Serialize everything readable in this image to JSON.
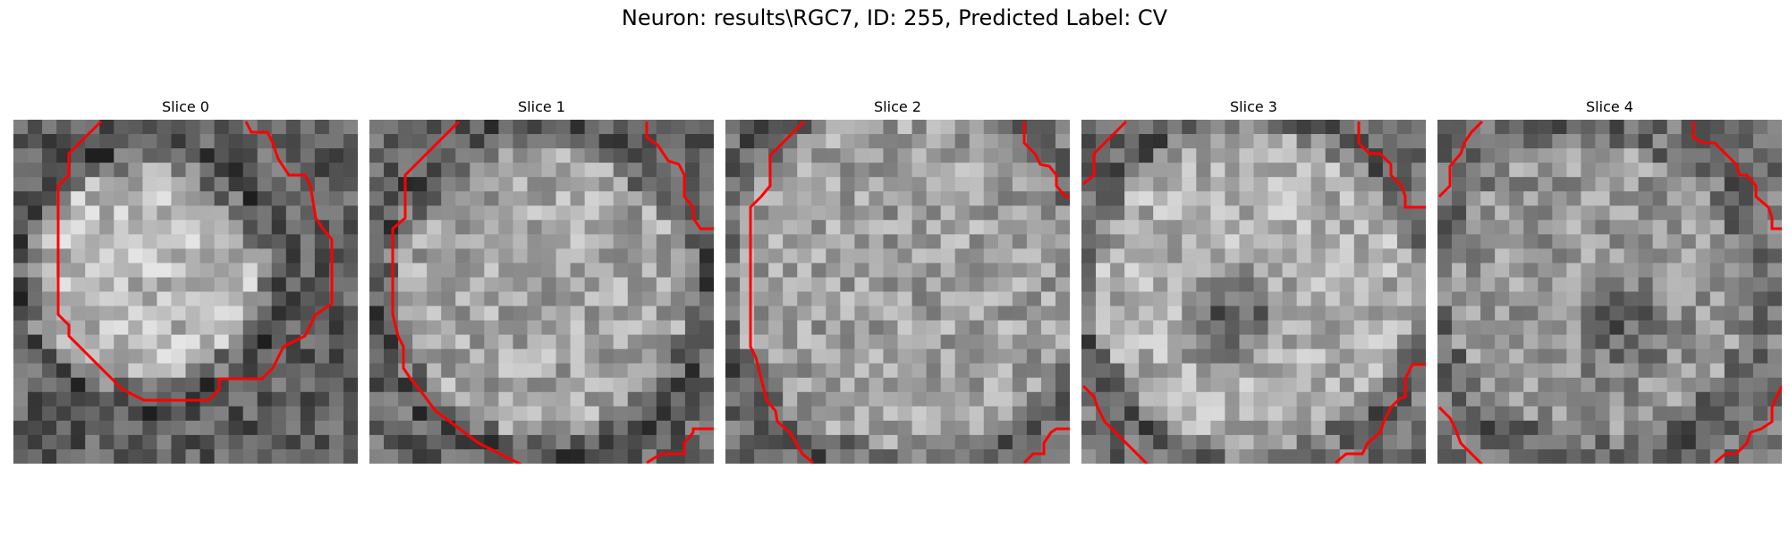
{
  "figure": {
    "title": "Neuron: results\\RGC7, ID: 255, Predicted Label: CV"
  },
  "panels": [
    {
      "title": "Slice 0"
    },
    {
      "title": "Slice 1"
    },
    {
      "title": "Slice 2"
    },
    {
      "title": "Slice 3"
    },
    {
      "title": "Slice 4"
    }
  ],
  "colors": {
    "contour": "#ff0000",
    "background": "#ffffff"
  }
}
